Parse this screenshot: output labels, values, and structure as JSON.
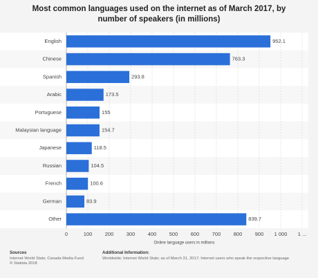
{
  "chart_data": {
    "type": "bar",
    "orientation": "horizontal",
    "title": "Most common languages used on the internet as of March 2017, by number of speakers (in millions)",
    "categories": [
      "English",
      "Chinese",
      "Spanish",
      "Arabic",
      "Portuguese",
      "Malaysian language",
      "Japanese",
      "Russian",
      "French",
      "German",
      "Other"
    ],
    "values": [
      952.1,
      763.3,
      293.8,
      173.5,
      155,
      154.7,
      118.5,
      104.5,
      100.6,
      83.9,
      839.7
    ],
    "color": "#2b6fd9",
    "xlabel": "Online language users in millions",
    "xlim": [
      0,
      1100
    ],
    "xticks": [
      0,
      100,
      200,
      300,
      400,
      500,
      600,
      700,
      800,
      900,
      {
        "value": 1000,
        "label": "1 000"
      },
      {
        "value": 1100,
        "label": "1 ..."
      }
    ],
    "grid": true
  },
  "footer": {
    "sources_heading": "Sources",
    "sources": [
      "Internet World Stats; Canada Media Fund",
      "© Statista 2018"
    ],
    "info_heading": "Additional Information:",
    "info": "Worldwide; Internet World Stats; as of March 31, 2017; Internet users who speak the respective language"
  }
}
